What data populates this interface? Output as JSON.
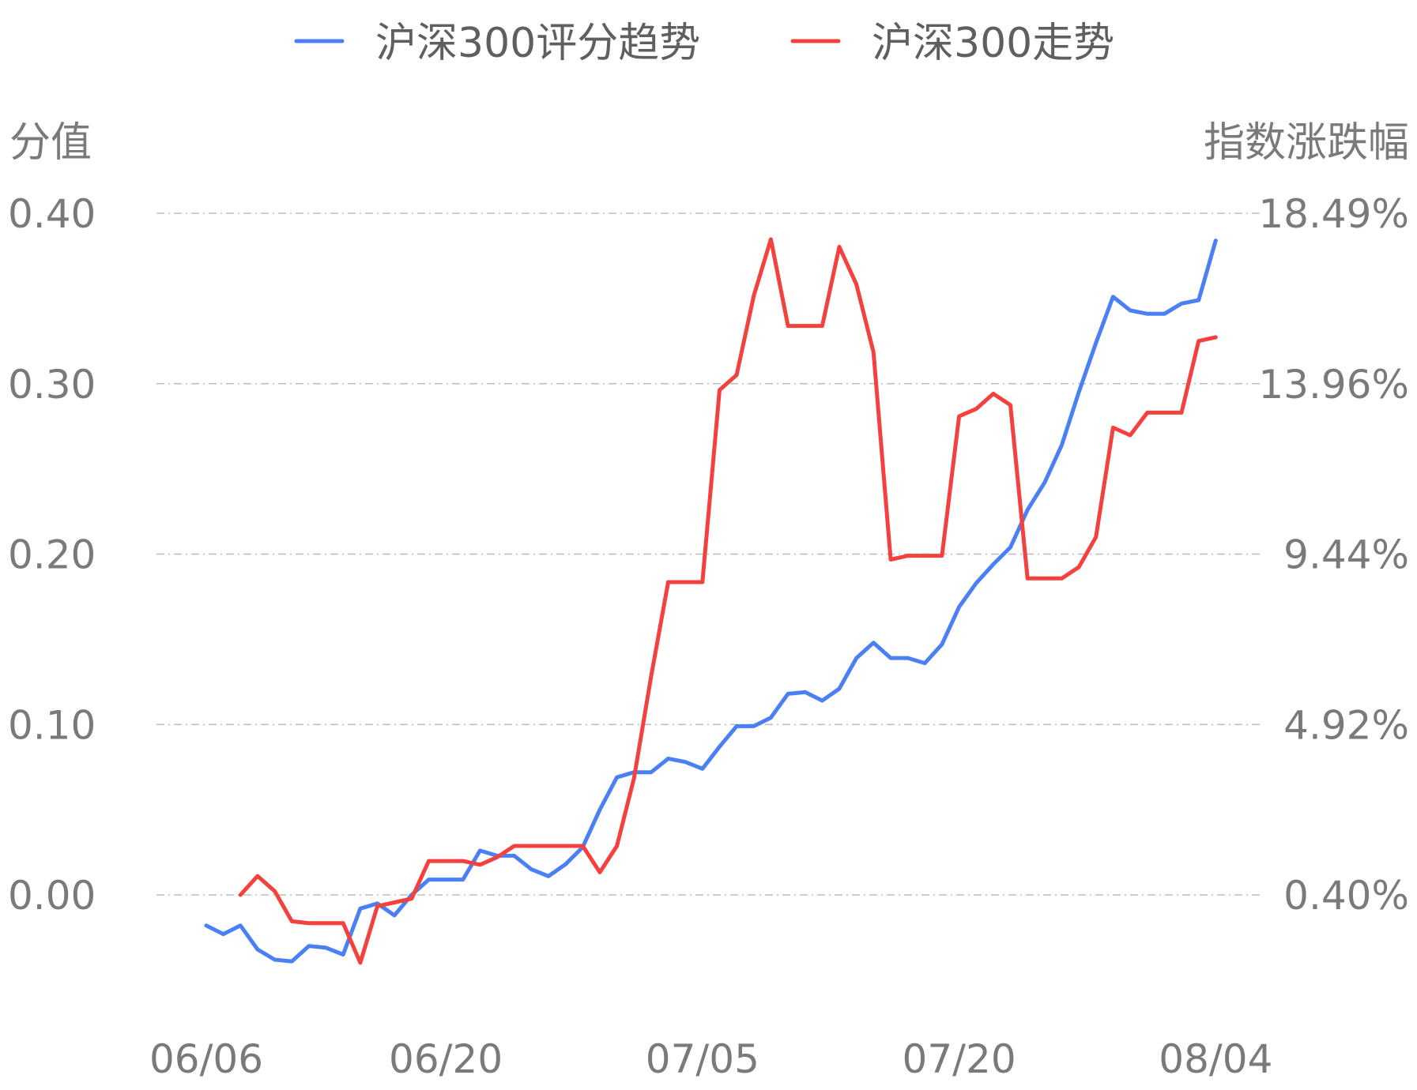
{
  "chart_data": {
    "type": "line",
    "legend_position": "top-center",
    "grid": true,
    "left_axis": {
      "title": "分值",
      "ticks": [
        "0.00",
        "0.10",
        "0.20",
        "0.30",
        "0.40"
      ],
      "ylim": [
        0.0,
        0.4
      ]
    },
    "right_axis": {
      "title": "指数涨跌幅",
      "ticks": [
        "0.40%",
        "4.92%",
        "9.44%",
        "13.96%",
        "18.49%"
      ],
      "ylim": [
        0.4,
        18.49
      ]
    },
    "x_ticks": [
      "06/06",
      "06/20",
      "07/05",
      "07/20",
      "08/04"
    ],
    "x_tick_index": [
      0,
      14,
      29,
      44,
      59
    ],
    "x_count": 60,
    "series": [
      {
        "name": "沪深300评分趋势",
        "color": "#4a7ff5",
        "axis": "left",
        "start_index": 0,
        "values": [
          -0.018,
          -0.023,
          -0.018,
          -0.032,
          -0.038,
          -0.039,
          -0.03,
          -0.031,
          -0.035,
          -0.008,
          -0.005,
          -0.012,
          0.0,
          0.009,
          0.009,
          0.009,
          0.026,
          0.023,
          0.023,
          0.015,
          0.011,
          0.018,
          0.028,
          0.05,
          0.069,
          0.072,
          0.072,
          0.08,
          0.078,
          0.074,
          0.087,
          0.099,
          0.099,
          0.104,
          0.118,
          0.119,
          0.114,
          0.121,
          0.139,
          0.148,
          0.139,
          0.139,
          0.136,
          0.147,
          0.169,
          0.183,
          0.194,
          0.204,
          0.226,
          0.242,
          0.264,
          0.295,
          0.324,
          0.351,
          0.343,
          0.341,
          0.341,
          0.347,
          0.349,
          0.384
        ]
      },
      {
        "name": "沪深300走势",
        "color": "#f4413d",
        "axis": "right",
        "start_index": 2,
        "values": [
          0.4,
          0.9,
          0.5,
          -0.3,
          -0.35,
          -0.35,
          -0.35,
          -1.4,
          0.1,
          0.2,
          0.3,
          1.3,
          1.3,
          1.3,
          1.2,
          1.4,
          1.7,
          1.7,
          1.7,
          1.7,
          1.7,
          1.0,
          1.7,
          3.5,
          6.2,
          8.7,
          8.7,
          8.7,
          13.8,
          14.2,
          16.3,
          17.8,
          15.5,
          15.5,
          15.5,
          17.6,
          16.6,
          14.8,
          9.3,
          9.4,
          9.4,
          9.4,
          13.1,
          13.3,
          13.7,
          13.4,
          8.8,
          8.8,
          8.8,
          9.1,
          9.9,
          12.8,
          12.6,
          13.2,
          13.2,
          13.2,
          15.1,
          15.2
        ]
      }
    ]
  }
}
